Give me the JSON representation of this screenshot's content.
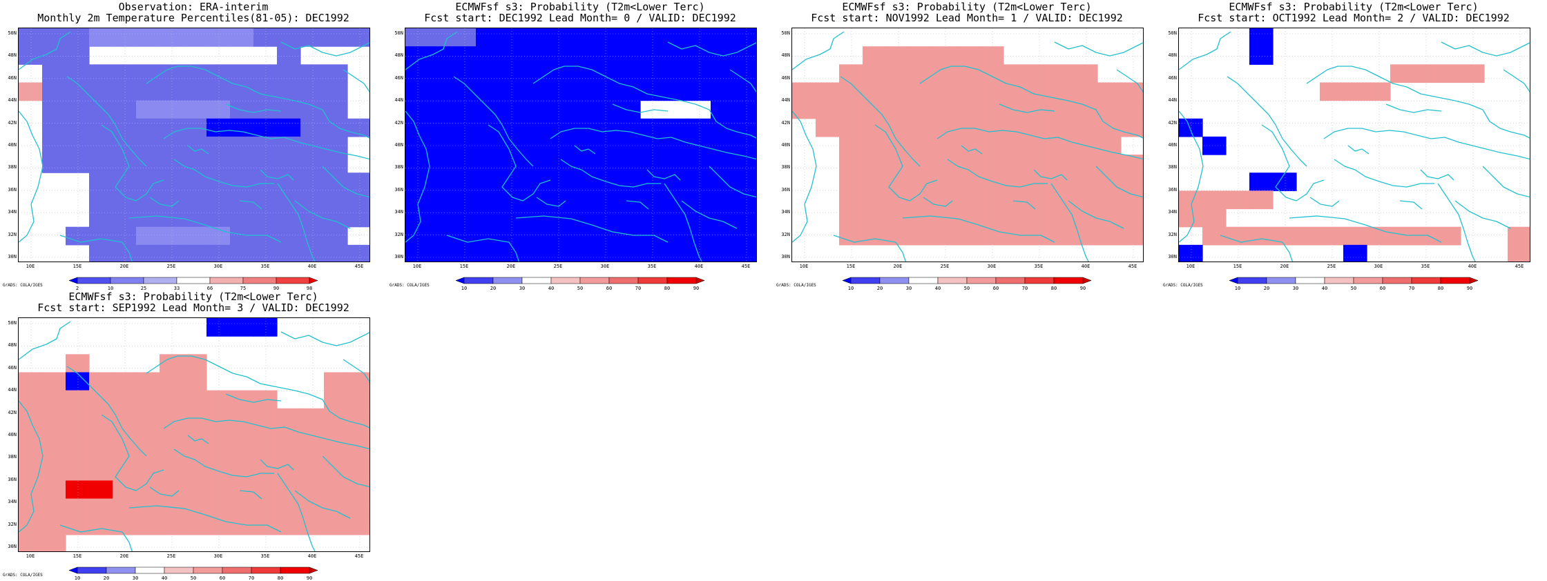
{
  "panels": [
    {
      "title1": "Observation: ERA-interim",
      "title2": "Monthly 2m Temperature Percentiles(81-05): DEC1992",
      "legend_type": "obs",
      "grid": [
        "hhhHHHHHHHhhhhh",
        "hhhNNNNNNNNhNNN",
        "NhhhhhhhhhhhhhN",
        "OhhhhhhhhhhhhhN",
        "NhhhhHHHHhhhhhN",
        "NhhhhhhhDDDDhhh",
        "NhhhhhhhhhhhhhN",
        "NhhhhhhhhhhhhhN",
        "NNNhhhhhhhhhhhh",
        "NNNhhhhhhhhhhhh",
        "NNNhhhhhhhhhhhh",
        "NNhhhHHHHhhhhhN",
        "NNNhhhhhhhhhhhh"
      ]
    },
    {
      "title1": "ECMWFsf s3: Probability (T2m<Lower Terc)",
      "title2": "Fcst start: DEC1992  Lead Month= 0 / VALID: DEC1992",
      "legend_type": "prob",
      "grid": [
        "hhhDDDDDDDDDDDD",
        "DDDDDDDDDDDDDDD",
        "DDDDDDDDDDDDDDD",
        "DDDDDDDDDDDDDDD",
        "DDDDDDDDDDNNNDD",
        "DDDDDDDDDDDDDDD",
        "DDDDDDDDDDDDDDD",
        "DDDDDDDDDDDDDDD",
        "DDDDDDDDDDDDDDD",
        "DDDDDDDDDDDDDDD",
        "DDDDDDDDDDDDDDD",
        "DDDDDDDDDDDDDDD",
        "DDDDDDDDDDDDDDD"
      ]
    },
    {
      "title1": "ECMWFsf s3: Probability (T2m<Lower Terc)",
      "title2": "Fcst start: NOV1992  Lead Month= 1 / VALID: DEC1992",
      "legend_type": "prob",
      "grid": [
        "NNNNNNNNNNNNNNN",
        "NNNPPPPPPNNNNNN",
        "NNPPPPPPPPPPPNN",
        "PPPPPPPPPPPPPPP",
        "PPPPPPPPPPPPPPP",
        "NPPPPPPPPPPPPPP",
        "NNPPPPPPPPPPPPN",
        "NNPPPPPPPPPPPPP",
        "NNPPPPPPPPPPPPP",
        "NNPPPPPPPPPPPPP",
        "NNPPPPPPPPPPPPP",
        "NNPPPPPPPPPPPPP",
        "NNNNNNNNNNNNNNN"
      ]
    },
    {
      "title1": "ECMWFsf s3: Probability (T2m<Lower Terc)",
      "title2": "Fcst start: OCT1992  Lead Month= 2 / VALID: DEC1992",
      "legend_type": "prob",
      "grid": [
        "NNNDNNNNNNNNNNN",
        "NNNDNNNNNNNNNNN",
        "NNNNNNNNNPPPPNN",
        "NNNNNNPPPNNNNNN",
        "NNNNNNNNNNNNNNN",
        "DNNNNNNNNNNNNNN",
        "NDNNNNNNNNNNNNN",
        "NNNNNNNNNNNNNNN",
        "NNNDDNNNNNNNNNN",
        "PPPPNNNNNNNNNNN",
        "PPNNNNNNNNNNNNN",
        "NPPPPPPPPPPPNNP",
        "DNNNNNNDNNNNNNP"
      ]
    },
    {
      "title1": "ECMWFsf s3: Probability (T2m<Lower Terc)",
      "title2": "Fcst start: SEP1992  Lead Month= 3 / VALID: DEC1992",
      "legend_type": "prob",
      "grid": [
        "NNNNNNNNDDDNNNN",
        "NNNNNNNNNNNNNNN",
        "NNPNNNPPNNNNNNN",
        "PPDPPPPPNNNNNPP",
        "PPPPPPPPPPPNNPP",
        "PPPPPPPPPPPPPPP",
        "PPPPPPPPPPPPPPP",
        "PPPPPPPPPPPPPPP",
        "PPPPPPPPPPPPPPP",
        "PPRRPPPPPPPPPPP",
        "PPPPPPPPPPPPPPP",
        "PPPPPPPPPPPPPPP",
        "PPNNNNNNNNNNNNN"
      ]
    }
  ],
  "map_axes": {
    "y_labels": [
      "50N",
      "48N",
      "46N",
      "44N",
      "42N",
      "40N",
      "38N",
      "36N",
      "34N",
      "32N",
      "30N"
    ],
    "x_labels": [
      "10E",
      "15E",
      "20E",
      "25E",
      "30E",
      "35E",
      "40E",
      "45E"
    ]
  },
  "cell_colors": {
    "D": "#0000ff",
    "B": "#3a3af0",
    "H": "#8a8af0",
    "h": "#6b6be8",
    "O": "#f0a0a0",
    "P": "#f19b9b",
    "Q": "#ee6d6d",
    "R": "#f00000",
    "N": "#ffffff"
  },
  "coastline_color": "#20c0d0",
  "legend_obs": {
    "labels": [
      "2",
      "10",
      "25",
      "33",
      "66",
      "75",
      "90",
      "98"
    ],
    "colors": [
      "#0000ff",
      "#5050f0",
      "#8080f0",
      "#b0b0f0",
      "#ffffff",
      "#f2b0b0",
      "#f08080",
      "#f04040",
      "#f00000"
    ]
  },
  "legend_prob": {
    "labels": [
      "10",
      "20",
      "30",
      "40",
      "50",
      "60",
      "70",
      "80",
      "90"
    ],
    "colors": [
      "#0000ff",
      "#4040f0",
      "#9090f0",
      "#ffffff",
      "#f4c2c2",
      "#f19b9b",
      "#ee6d6d",
      "#f03a3a",
      "#f00000",
      "#d00000"
    ]
  },
  "credit": "GrADS: COLA/IGES"
}
